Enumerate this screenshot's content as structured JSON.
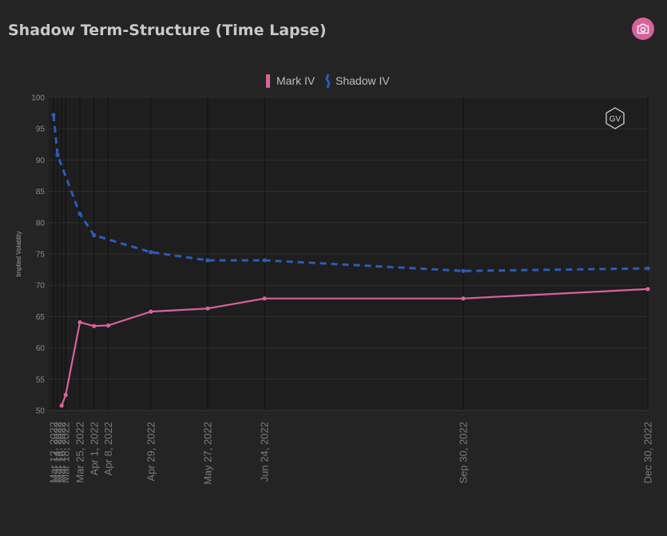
{
  "header": {
    "title": "Shadow Term-Structure (Time Lapse)",
    "camera_icon": "camera-icon",
    "accent": "#d9629b"
  },
  "watermark": {
    "text": "GV"
  },
  "chart_data": {
    "type": "line",
    "title": "Shadow Term-Structure (Time Lapse)",
    "ylabel": "Implied Volatility",
    "xlabel": "",
    "ylim": [
      50,
      100
    ],
    "yticks": [
      50,
      55,
      60,
      65,
      70,
      75,
      80,
      85,
      90,
      95,
      100
    ],
    "x": [
      "2022-03-12",
      "2022-03-14",
      "2022-03-16",
      "2022-03-18",
      "2022-03-25",
      "2022-04-01",
      "2022-04-08",
      "2022-04-29",
      "2022-05-27",
      "2022-06-24",
      "2022-09-30",
      "2022-12-30"
    ],
    "x_tick_labels": [
      "Mar 12, 2022",
      "Mar 14, 2022",
      "Mar 16, 2022",
      "Mar 18, 2022",
      "Mar 25, 2022",
      "Apr 1, 2022",
      "Apr 8, 2022",
      "Apr 29, 2022",
      "May 27, 2022",
      "Jun 24, 2022",
      "Sep 30, 2022",
      "Dec 30, 2022"
    ],
    "series": [
      {
        "name": "Mark IV",
        "color": "#d9629b",
        "dash": "solid",
        "values": [
          null,
          null,
          50.8,
          52.5,
          64.1,
          63.5,
          63.6,
          65.8,
          66.3,
          67.9,
          67.9,
          69.4
        ]
      },
      {
        "name": "Shadow IV",
        "color": "#2b5cb8",
        "dash": "dashed",
        "values": [
          97.2,
          90.8,
          null,
          null,
          81.4,
          78.0,
          null,
          75.3,
          74.0,
          74.0,
          72.3,
          72.7
        ]
      }
    ],
    "legend": "top-center",
    "grid": true
  }
}
